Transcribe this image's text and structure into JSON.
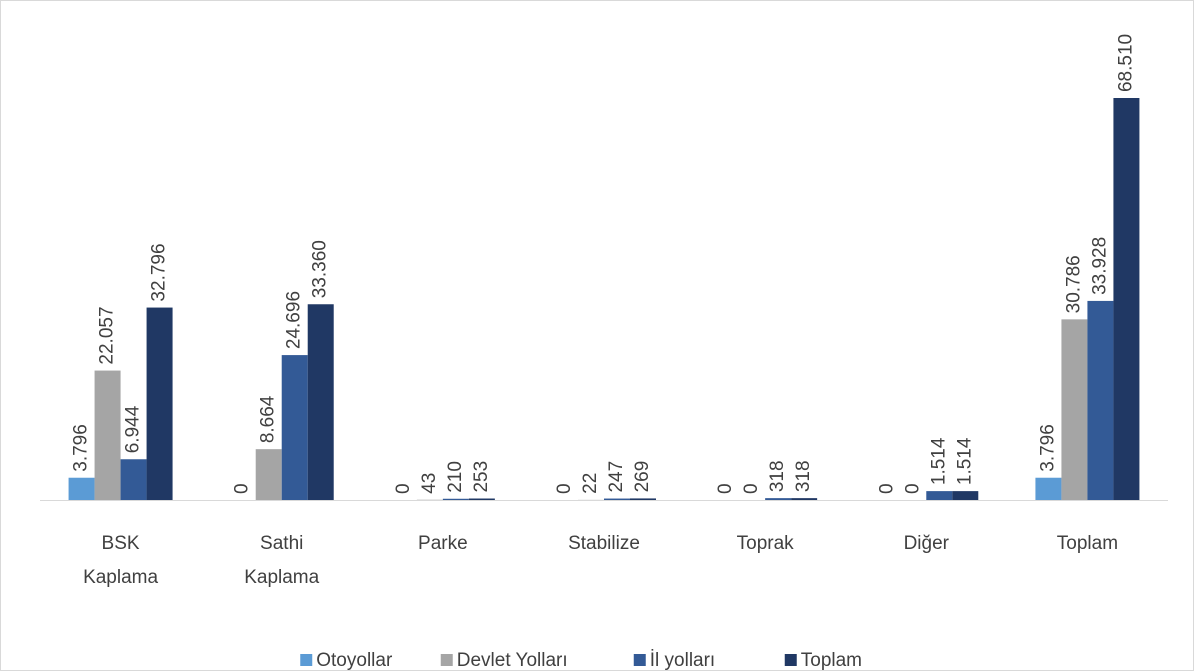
{
  "chart_data": {
    "type": "bar",
    "categories": [
      "BSK Kaplama",
      "Sathi Kaplama",
      "Parke",
      "Stabilize",
      "Toprak",
      "Diğer",
      "Toplam"
    ],
    "series": [
      {
        "name": "Otoyollar",
        "color": "#5b9bd5",
        "values": [
          3796,
          0,
          0,
          0,
          0,
          0,
          3796
        ],
        "value_labels": [
          "3.796",
          "0",
          "0",
          "0",
          "0",
          "0",
          "3.796"
        ]
      },
      {
        "name": "Devlet Yolları",
        "color": "#a5a5a5",
        "values": [
          22057,
          8664,
          43,
          22,
          0,
          0,
          30786
        ],
        "value_labels": [
          "22.057",
          "8.664",
          "43",
          "22",
          "0",
          "0",
          "30.786"
        ]
      },
      {
        "name": "İl yolları",
        "color": "#335a96",
        "values": [
          6944,
          24696,
          210,
          247,
          318,
          1514,
          33928
        ],
        "value_labels": [
          "6.944",
          "24.696",
          "210",
          "247",
          "318",
          "1.514",
          "33.928"
        ]
      },
      {
        "name": "Toplam",
        "color": "#203864",
        "values": [
          32796,
          33360,
          253,
          269,
          318,
          1514,
          68510
        ],
        "value_labels": [
          "32.796",
          "33.360",
          "253",
          "269",
          "318",
          "1.514",
          "68.510"
        ]
      }
    ],
    "legend": "bottom"
  }
}
